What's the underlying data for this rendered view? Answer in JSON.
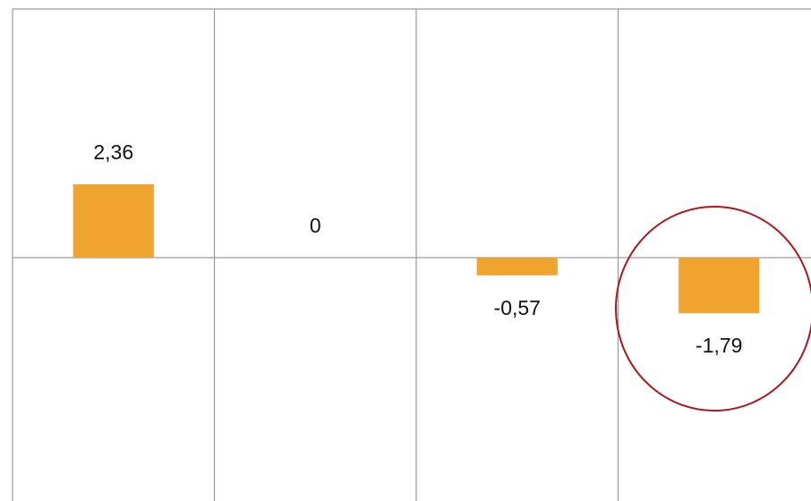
{
  "chart_data": {
    "type": "bar",
    "categories": [
      null,
      null,
      null,
      null
    ],
    "values": [
      2.36,
      0,
      -0.57,
      -1.79
    ],
    "value_labels": [
      "2,36",
      "0",
      "-0,57",
      "-1,79"
    ],
    "color": "#f0a430",
    "ylim": [
      -7.8,
      8
    ]
  }
}
